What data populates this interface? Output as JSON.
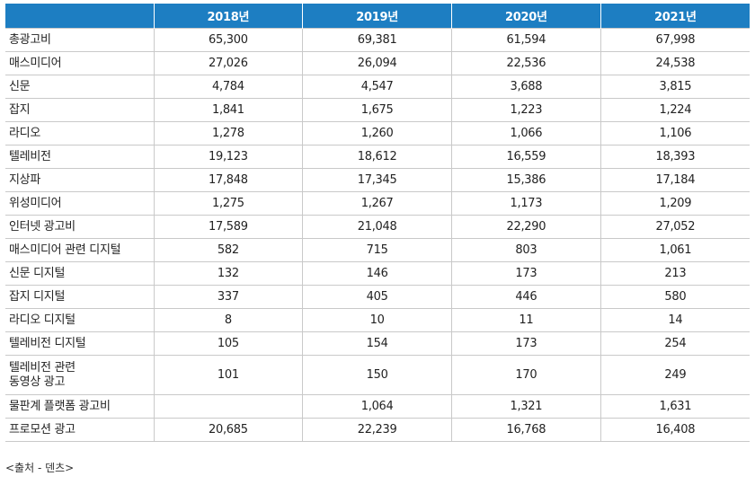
{
  "table": {
    "headers": [
      "",
      "2018년",
      "2019년",
      "2020년",
      "2021년"
    ],
    "rows": [
      {
        "label": "총광고비",
        "values": [
          "65,300",
          "69,381",
          "61,594",
          "67,998"
        ]
      },
      {
        "label": "매스미디어",
        "values": [
          "27,026",
          "26,094",
          "22,536",
          "24,538"
        ]
      },
      {
        "label": "신문",
        "values": [
          "4,784",
          "4,547",
          "3,688",
          "3,815"
        ]
      },
      {
        "label": "잡지",
        "values": [
          "1,841",
          "1,675",
          "1,223",
          "1,224"
        ]
      },
      {
        "label": "라디오",
        "values": [
          "1,278",
          "1,260",
          "1,066",
          "1,106"
        ]
      },
      {
        "label": "텔레비전",
        "values": [
          "19,123",
          "18,612",
          "16,559",
          "18,393"
        ]
      },
      {
        "label": "지상파",
        "values": [
          "17,848",
          "17,345",
          "15,386",
          "17,184"
        ]
      },
      {
        "label": "위성미디어",
        "values": [
          "1,275",
          "1,267",
          "1,173",
          "1,209"
        ]
      },
      {
        "label": "인터넷 광고비",
        "values": [
          "17,589",
          "21,048",
          "22,290",
          "27,052"
        ]
      },
      {
        "label": "매스미디어 관련 디지털",
        "values": [
          "582",
          "715",
          "803",
          "1,061"
        ]
      },
      {
        "label": "신문 디지털",
        "values": [
          "132",
          "146",
          "173",
          "213"
        ]
      },
      {
        "label": "잡지 디지털",
        "values": [
          "337",
          "405",
          "446",
          "580"
        ]
      },
      {
        "label": "라디오 디지털",
        "values": [
          "8",
          "10",
          "11",
          "14"
        ]
      },
      {
        "label": "텔레비전 디지털",
        "values": [
          "105",
          "154",
          "173",
          "254"
        ]
      },
      {
        "label": "텔레비전 관련\n동영상 광고",
        "values": [
          "101",
          "150",
          "170",
          "249"
        ],
        "tall": true
      },
      {
        "label": "물판계 플랫폼 광고비",
        "values": [
          "",
          "1,064",
          "1,321",
          "1,631"
        ]
      },
      {
        "label": "프로모션 광고",
        "values": [
          "20,685",
          "22,239",
          "16,768",
          "16,408"
        ]
      }
    ]
  },
  "source": "<출처 - 덴츠>",
  "colors": {
    "header_bg": "#1d7ec2",
    "header_text": "#ffffff",
    "rule": "#c9c9c9"
  }
}
